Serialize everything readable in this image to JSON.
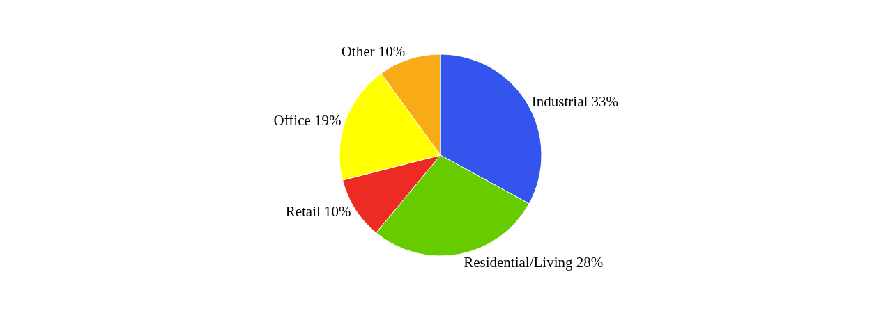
{
  "chart_data": {
    "type": "pie",
    "categories": [
      "Industrial",
      "Residential/Living",
      "Retail",
      "Office",
      "Other"
    ],
    "values": [
      33,
      28,
      10,
      19,
      10
    ],
    "colors": [
      "#3355ee",
      "#66cc00",
      "#ee2a24",
      "#ffff00",
      "#f9ab17"
    ],
    "value_labels": [
      "33%",
      "28%",
      "10%",
      "19%",
      "10%"
    ],
    "legend": false
  }
}
